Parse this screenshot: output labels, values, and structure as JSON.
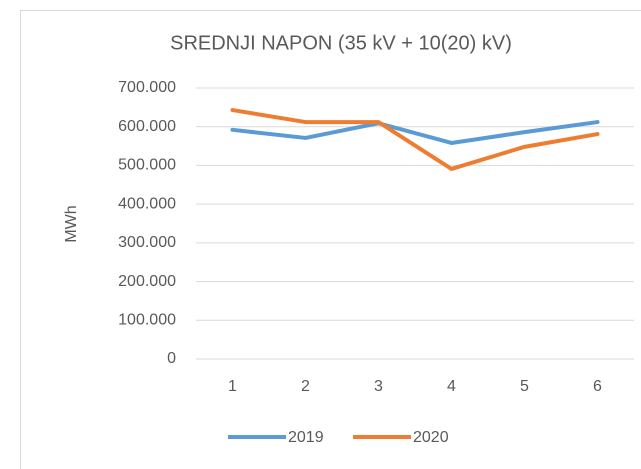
{
  "chart_data": {
    "type": "line",
    "title": "SREDNJI NAPON (35 kV + 10(20) kV)",
    "y_label": "MWh",
    "categories": [
      1,
      2,
      3,
      4,
      5,
      6
    ],
    "series": [
      {
        "name": "2019",
        "color": "#5b9bd5",
        "values": [
          592000,
          571000,
          609000,
          558000,
          586000,
          612000
        ]
      },
      {
        "name": "2020",
        "color": "#ed7d31",
        "values": [
          643000,
          612000,
          612000,
          491000,
          548000,
          581000
        ]
      }
    ],
    "ylim": [
      0,
      700000
    ],
    "yticks": [
      0,
      {
        "value": 100000,
        "label": "100.000"
      },
      {
        "value": 200000,
        "label": "200.000"
      },
      {
        "value": 300000,
        "label": "300.000"
      },
      {
        "value": 400000,
        "label": "400.000"
      },
      {
        "value": 500000,
        "label": "500.000"
      },
      {
        "value": 600000,
        "label": "600.000"
      },
      {
        "value": 700000,
        "label": "700.000"
      }
    ],
    "grid": true,
    "legend": "bottom"
  }
}
